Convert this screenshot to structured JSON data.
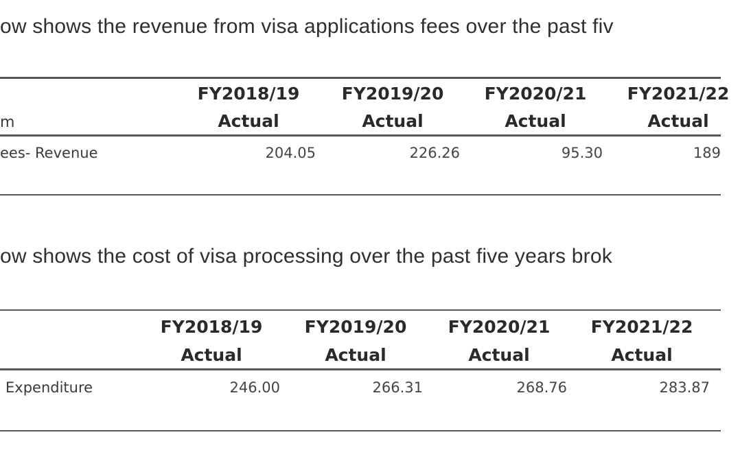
{
  "paragraph1": "ow shows the revenue from visa applications fees over the past fiv",
  "table1": {
    "header_left": "m",
    "years": [
      "FY2018/19",
      "FY2019/20",
      "FY2020/21",
      "FY2021/22"
    ],
    "sub": [
      "Actual",
      "Actual",
      "Actual",
      "Actual"
    ],
    "row_label": "ees- Revenue",
    "values": [
      "204.05",
      "226.26",
      "95.30",
      "189"
    ]
  },
  "paragraph2": "ow shows the cost of visa processing over the past five years brok",
  "table2": {
    "years": [
      "FY2018/19",
      "FY2019/20",
      "FY2020/21",
      "FY2021/22"
    ],
    "sub": [
      "Actual",
      "Actual",
      "Actual",
      "Actual"
    ],
    "row_label": "Expenditure",
    "values": [
      "246.00",
      "266.31",
      "268.76",
      "283.87"
    ]
  }
}
